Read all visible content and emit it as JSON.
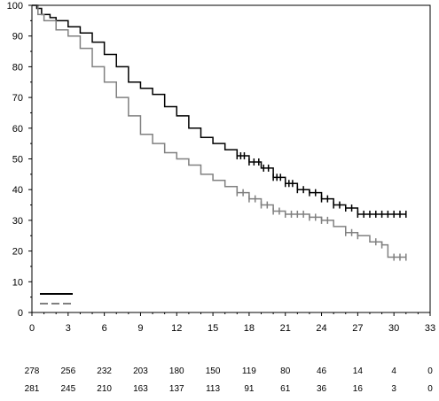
{
  "chart_data": {
    "type": "line",
    "title": "",
    "xlabel": "",
    "ylabel": "",
    "xlim": [
      0,
      33
    ],
    "ylim": [
      0,
      100
    ],
    "x_ticks": [
      0,
      3,
      6,
      9,
      12,
      15,
      18,
      21,
      24,
      27,
      30,
      33
    ],
    "y_ticks": [
      0,
      10,
      20,
      30,
      40,
      50,
      60,
      70,
      80,
      90,
      100
    ],
    "grid": false,
    "legend": {
      "placement": "bottom-left",
      "entries": [
        {
          "series": 0,
          "label": ""
        },
        {
          "series": 1,
          "label": ""
        }
      ]
    },
    "series": [
      {
        "color": "#000000",
        "dash": "solid",
        "points": [
          [
            0,
            100
          ],
          [
            0.4,
            99
          ],
          [
            0.8,
            97
          ],
          [
            1.5,
            96
          ],
          [
            2,
            95
          ],
          [
            3,
            93
          ],
          [
            4,
            91
          ],
          [
            5,
            88
          ],
          [
            6,
            84
          ],
          [
            7,
            80
          ],
          [
            8,
            75
          ],
          [
            9,
            73
          ],
          [
            10,
            71
          ],
          [
            11,
            67
          ],
          [
            12,
            64
          ],
          [
            13,
            60
          ],
          [
            14,
            57
          ],
          [
            15,
            55
          ],
          [
            16,
            53
          ],
          [
            17,
            51
          ],
          [
            18,
            49
          ],
          [
            19,
            47
          ],
          [
            20,
            44
          ],
          [
            21,
            42
          ],
          [
            22,
            40
          ],
          [
            23,
            39
          ],
          [
            24,
            37
          ],
          [
            25,
            35
          ],
          [
            26,
            34
          ],
          [
            27,
            32
          ],
          [
            28,
            32
          ],
          [
            29,
            32
          ],
          [
            31,
            32
          ]
        ],
        "censor_x": [
          17,
          17.3,
          17.6,
          18,
          18.4,
          18.8,
          19.2,
          19.6,
          20,
          20.3,
          20.6,
          21,
          21.3,
          21.6,
          22,
          22.5,
          23,
          23.5,
          24,
          24.5,
          25,
          25.5,
          26,
          26.5,
          27,
          27.5,
          28,
          28.5,
          29,
          29.5,
          30,
          30.5,
          31
        ]
      },
      {
        "color": "#808080",
        "dash": "dashed",
        "points": [
          [
            0,
            100
          ],
          [
            0.5,
            97
          ],
          [
            1,
            95
          ],
          [
            2,
            92
          ],
          [
            3,
            90
          ],
          [
            4,
            86
          ],
          [
            5,
            80
          ],
          [
            6,
            75
          ],
          [
            7,
            70
          ],
          [
            8,
            64
          ],
          [
            9,
            58
          ],
          [
            10,
            55
          ],
          [
            11,
            52
          ],
          [
            12,
            50
          ],
          [
            13,
            48
          ],
          [
            14,
            45
          ],
          [
            15,
            43
          ],
          [
            16,
            41
          ],
          [
            17,
            39
          ],
          [
            18,
            37
          ],
          [
            19,
            35
          ],
          [
            20,
            33
          ],
          [
            21,
            32
          ],
          [
            22,
            32
          ],
          [
            23,
            31
          ],
          [
            24,
            30
          ],
          [
            25,
            28
          ],
          [
            26,
            26
          ],
          [
            27,
            25
          ],
          [
            28,
            23
          ],
          [
            29,
            22
          ],
          [
            29.5,
            18
          ],
          [
            31,
            18
          ]
        ],
        "censor_x": [
          17,
          17.5,
          18,
          18.5,
          19,
          19.5,
          20,
          20.5,
          21,
          21.5,
          22,
          22.5,
          23,
          23.5,
          24,
          24.5,
          26,
          26.5,
          27,
          28.5,
          29,
          30,
          30.5,
          31
        ]
      }
    ],
    "risk_table": {
      "x": [
        0,
        3,
        6,
        9,
        12,
        15,
        18,
        21,
        24,
        27,
        30,
        33
      ],
      "rows": [
        {
          "series": 0,
          "values": [
            "278",
            "256",
            "232",
            "203",
            "180",
            "150",
            "119",
            "80",
            "46",
            "14",
            "4",
            "0"
          ]
        },
        {
          "series": 1,
          "values": [
            "281",
            "245",
            "210",
            "163",
            "137",
            "113",
            "91",
            "61",
            "36",
            "16",
            "3",
            "0"
          ]
        }
      ]
    }
  }
}
